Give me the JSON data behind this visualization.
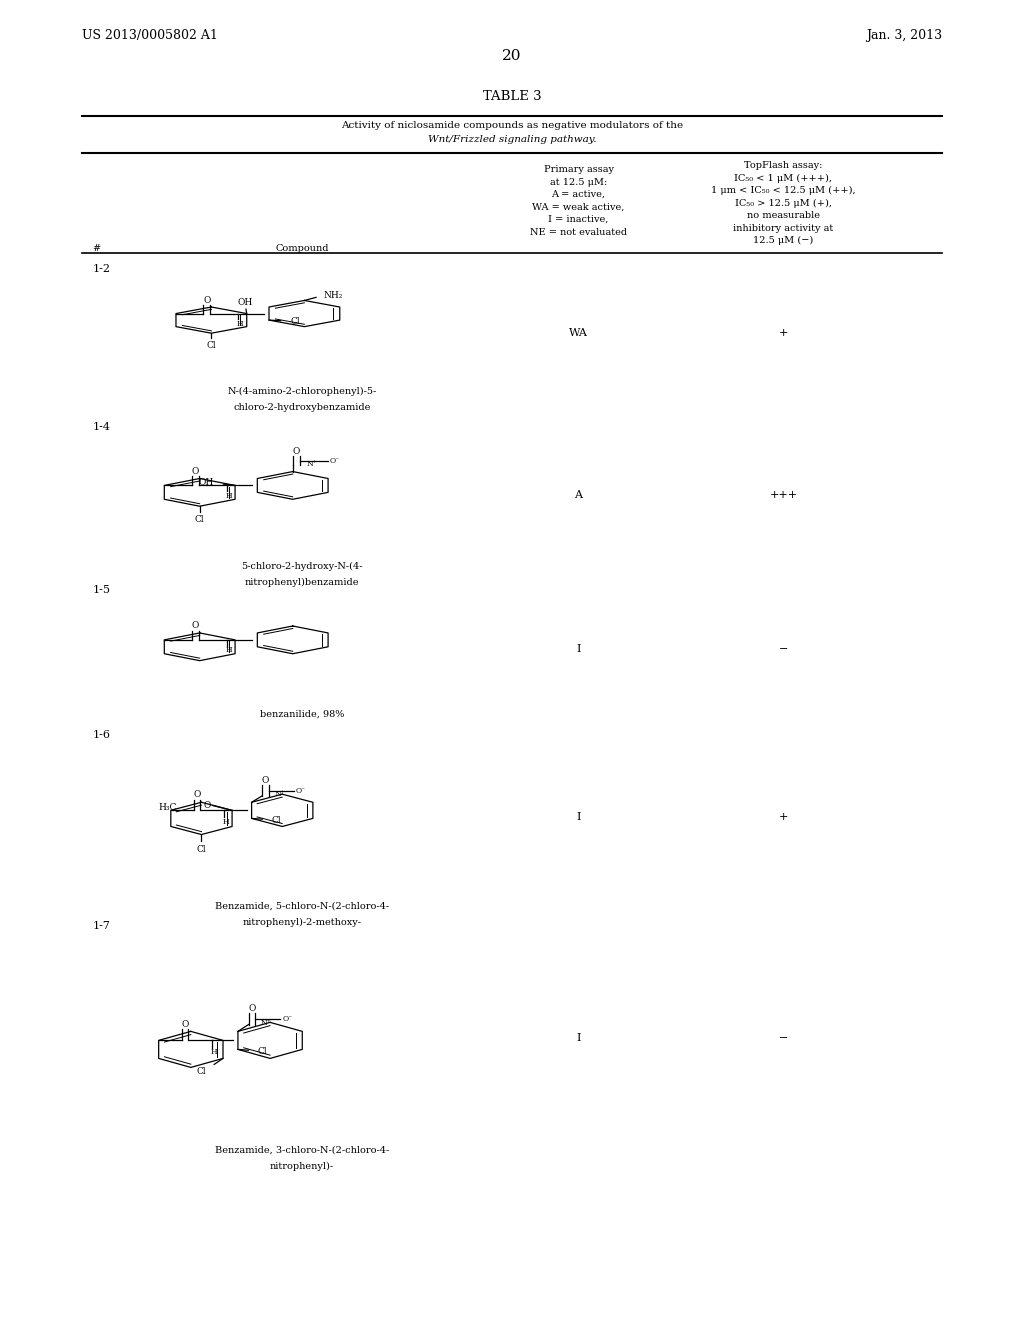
{
  "bg_color": "#ffffff",
  "page_width": 10.24,
  "page_height": 13.2,
  "header_left": "US 2013/0005802 A1",
  "header_right": "Jan. 3, 2013",
  "page_number": "20",
  "table_title": "TABLE 3",
  "table_subtitle_line1": "Activity of niclosamide compounds as negative modulators of the",
  "table_subtitle_line2": "Wnt/Frizzled signaling pathway.",
  "col_hash": "#",
  "col_compound": "Compound",
  "primary_assay_lines": [
    "Primary assay",
    "at 12.5 μM:",
    "A = active,",
    "WA = weak active,",
    "I = inactive,",
    "NE = not evaluated"
  ],
  "topflash_lines": [
    "TopFlash assay:",
    "IC₅₀ < 1 μM (+++),",
    "1 μm < IC₅₀ < 12.5 μM (++),",
    "IC₅₀ > 12.5 μM (+),",
    "no measurable",
    "inhibitory activity at",
    "12.5 μM (−)"
  ],
  "rows": [
    {
      "id": "1-2",
      "name_lines": [
        "N-(4-amino-2-chlorophenyl)-5-",
        "chloro-2-hydroxybenzamide"
      ],
      "primary": "WA",
      "topflash": "+"
    },
    {
      "id": "1-4",
      "name_lines": [
        "5-chloro-2-hydroxy-N-(4-",
        "nitrophenyl)benzamide"
      ],
      "primary": "A",
      "topflash": "+++"
    },
    {
      "id": "1-5",
      "name_lines": [
        "benzanilide, 98%"
      ],
      "primary": "I",
      "topflash": "−"
    },
    {
      "id": "1-6",
      "name_lines": [
        "Benzamide, 5-chloro-N-(2-chloro-4-",
        "nitrophenyl)-2-methoxy-"
      ],
      "primary": "I",
      "topflash": "+"
    },
    {
      "id": "1-7",
      "name_lines": [
        "Benzamide, 3-chloro-N-(2-chloro-4-",
        "nitrophenyl)-"
      ],
      "primary": "I",
      "topflash": "−"
    }
  ]
}
